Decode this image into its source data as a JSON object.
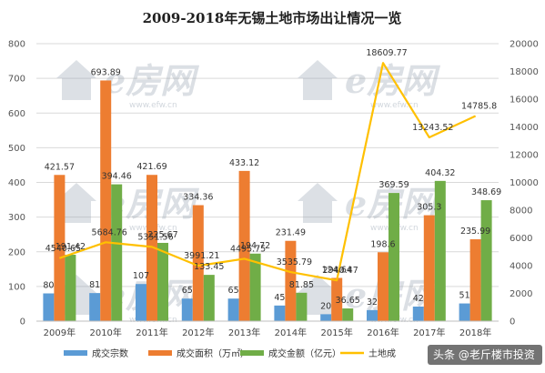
{
  "chart_data": {
    "type": "bar",
    "title": "2009-2018年无锡土地市场出让情况一览",
    "categories": [
      "2009年",
      "2010年",
      "2011年",
      "2012年",
      "2013年",
      "2014年",
      "2015年",
      "2016年",
      "2017年",
      "2018年"
    ],
    "y_left": {
      "min": 0,
      "max": 800,
      "ticks": [
        "0",
        "100",
        "200",
        "300",
        "400",
        "500",
        "600",
        "700",
        "800"
      ]
    },
    "y_right": {
      "min": 0,
      "max": 20000,
      "ticks": [
        "0",
        "2000",
        "4000",
        "6000",
        "8000",
        "10000",
        "12000",
        "14000",
        "16000",
        "18000",
        "20000"
      ]
    },
    "series": [
      {
        "name": "成交宗数",
        "color": "#5b9bd5",
        "axis": "left",
        "kind": "bar",
        "values": [
          80,
          81,
          107,
          65,
          65,
          45,
          20,
          32,
          42,
          51
        ],
        "labels": [
          "80",
          "81",
          "107",
          "65",
          "65",
          "45",
          "20",
          "32",
          "42",
          "51"
        ]
      },
      {
        "name": "成交面积（万㎡）",
        "color": "#ed7d31",
        "axis": "left",
        "kind": "bar",
        "values": [
          421.57,
          693.89,
          421.69,
          334.36,
          433.12,
          231.49,
          124.64,
          198.6,
          305.3,
          235.99
        ],
        "labels": [
          "421.57",
          "693.89",
          "421.69",
          "334.36",
          "433.12",
          "231.49",
          "124.64",
          "198.6",
          "305.3",
          "235.99"
        ]
      },
      {
        "name": "成交金额（亿元）",
        "color": "#70ad47",
        "axis": "left",
        "kind": "bar",
        "values": [
          191.42,
          394.46,
          225.67,
          133.45,
          194.72,
          81.85,
          36.65,
          369.59,
          404.32,
          348.69
        ],
        "labels": [
          "191.42",
          "394.46",
          "225.67",
          "133.45",
          "194.72",
          "81.85",
          "36.65",
          "369.59",
          "404.32",
          "348.69"
        ]
      },
      {
        "name": "土地成",
        "color": "#ffc000",
        "axis": "right",
        "kind": "line",
        "values": [
          4540.65,
          5684.76,
          5351.56,
          3991.21,
          4495.75,
          3535.79,
          2940.47,
          18609.77,
          13243.52,
          14785.8
        ],
        "labels": [
          "4540.65",
          "5684.76",
          "5351.56",
          "3991.21",
          "4495.75",
          "3535.79",
          "2940.47",
          "18609.77",
          "13243.52",
          "14785.8"
        ]
      }
    ]
  },
  "watermark": {
    "logo": "e房网",
    "url": "www.efw.cn"
  },
  "badge": {
    "text": "头条 @老斤楼市投资"
  }
}
